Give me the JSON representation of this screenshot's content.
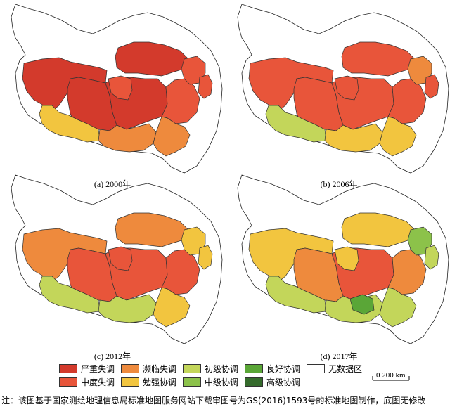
{
  "colors": {
    "severe": "#d33a2c",
    "moderate": "#e8553a",
    "near": "#ee8a3d",
    "barely": "#f2c53f",
    "primary": "#c3d65a",
    "intermediate": "#8cc24a",
    "good": "#5aa637",
    "high": "#356b2c",
    "nodata": "#ffffff"
  },
  "panels": [
    {
      "caption": "(a) 2000年",
      "regions": {
        "nw": "severe",
        "ne": "severe",
        "w": "severe",
        "c": "severe",
        "e": "moderate",
        "sw": "barely",
        "s": "near",
        "se": "near",
        "pocket": "moderate",
        "fe1": "moderate",
        "fe2": "moderate"
      }
    },
    {
      "caption": "(b) 2006年",
      "regions": {
        "nw": "moderate",
        "ne": "moderate",
        "w": "moderate",
        "c": "moderate",
        "e": "moderate",
        "sw": "primary",
        "s": "barely",
        "se": "barely",
        "pocket": "moderate",
        "fe1": "near",
        "fe2": "moderate"
      }
    },
    {
      "caption": "(c) 2012年",
      "regions": {
        "nw": "near",
        "ne": "near",
        "w": "moderate",
        "c": "moderate",
        "e": "moderate",
        "sw": "primary",
        "s": "primary",
        "se": "barely",
        "pocket": "moderate",
        "fe1": "barely",
        "fe2": "barely"
      }
    },
    {
      "caption": "(d) 2017年",
      "regions": {
        "nw": "barely",
        "ne": "barely",
        "w": "near",
        "c": "moderate",
        "e": "near",
        "sw": "primary",
        "s": "primary",
        "se": "primary",
        "pocket": "barely",
        "fe1": "intermediate",
        "fe2": "primary",
        "center_green": "good"
      }
    }
  ],
  "legend": [
    {
      "key": "severe",
      "label": "严重失调"
    },
    {
      "key": "moderate",
      "label": "中度失调"
    },
    {
      "key": "near",
      "label": "濒临失调"
    },
    {
      "key": "barely",
      "label": "勉强协调"
    },
    {
      "key": "primary",
      "label": "初级协调"
    },
    {
      "key": "intermediate",
      "label": "中级协调"
    },
    {
      "key": "good",
      "label": "良好协调"
    },
    {
      "key": "high",
      "label": "高级协调"
    },
    {
      "key": "nodata",
      "label": "无数据区"
    }
  ],
  "scale": {
    "label": "0 200 km"
  },
  "footnote": "注：该图基于国家测绘地理信息局标准地图服务网站下载审图号为GS(2016)1593号的标准地图制作，底图无修改"
}
